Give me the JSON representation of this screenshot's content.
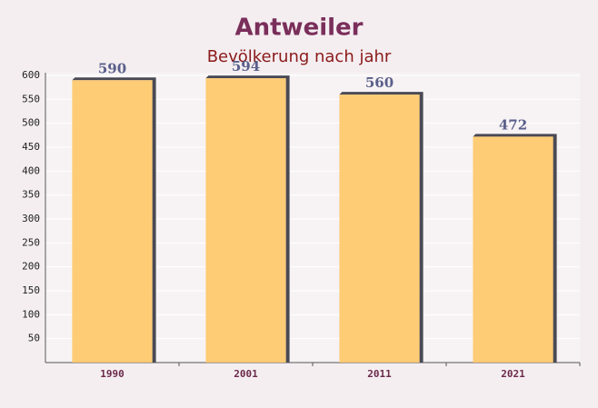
{
  "chart_data": {
    "type": "bar",
    "title": "Antweiler",
    "subtitle": "Bevölkerung nach jahr",
    "categories": [
      "1990",
      "2001",
      "2011",
      "2021"
    ],
    "values": [
      590,
      594,
      560,
      472
    ],
    "color": "#fec867",
    "ylim": [
      0,
      600
    ],
    "yticks": [
      50,
      100,
      150,
      200,
      250,
      300,
      350,
      400,
      450,
      500,
      550,
      600
    ],
    "grid": true
  }
}
